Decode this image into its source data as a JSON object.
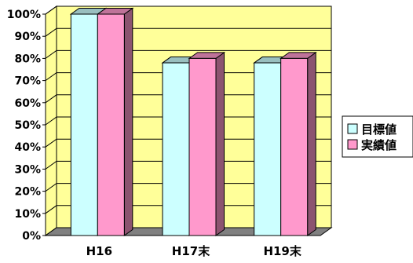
{
  "chart_data": {
    "type": "bar",
    "categories": [
      "H16",
      "H17末",
      "H19末"
    ],
    "series": [
      {
        "name": "目標値",
        "values": [
          100,
          78,
          78
        ],
        "color": "#ccffff"
      },
      {
        "name": "実績値",
        "values": [
          100,
          80,
          80
        ],
        "color": "#ff99cc"
      }
    ],
    "y_ticks": [
      "0%",
      "10%",
      "20%",
      "30%",
      "40%",
      "50%",
      "60%",
      "70%",
      "80%",
      "90%",
      "100%"
    ],
    "ylim": [
      0,
      100
    ],
    "grid": true,
    "legend_position": "right",
    "plot_wall_color": "#ffff99",
    "plot_floor_color": "#808080",
    "title": "",
    "xlabel": "",
    "ylabel": ""
  }
}
